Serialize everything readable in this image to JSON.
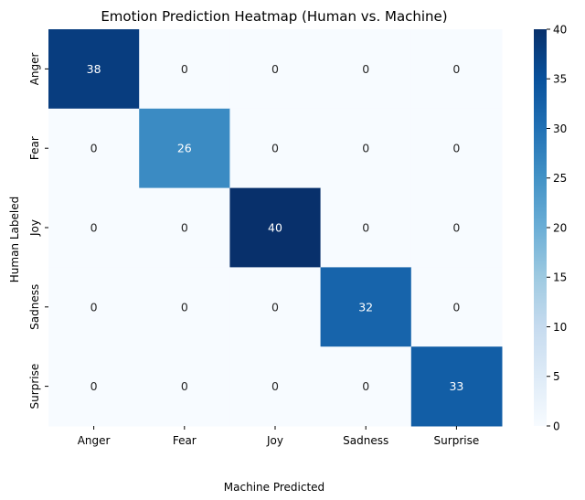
{
  "chart_data": {
    "type": "heatmap",
    "title": "Emotion Prediction Heatmap (Human vs. Machine)",
    "xlabel": "Machine Predicted",
    "ylabel": "Human Labeled",
    "x_categories": [
      "Anger",
      "Fear",
      "Joy",
      "Sadness",
      "Surprise"
    ],
    "y_categories": [
      "Anger",
      "Fear",
      "Joy",
      "Sadness",
      "Surprise"
    ],
    "values": [
      [
        38,
        0,
        0,
        0,
        0
      ],
      [
        0,
        26,
        0,
        0,
        0
      ],
      [
        0,
        0,
        40,
        0,
        0
      ],
      [
        0,
        0,
        0,
        32,
        0
      ],
      [
        0,
        0,
        0,
        0,
        33
      ]
    ],
    "colormap": "Blues",
    "vmin": 0,
    "vmax": 40,
    "colorbar_ticks": [
      0,
      5,
      10,
      15,
      20,
      25,
      30,
      35,
      40
    ],
    "annotations_shown": true,
    "grid": false
  }
}
